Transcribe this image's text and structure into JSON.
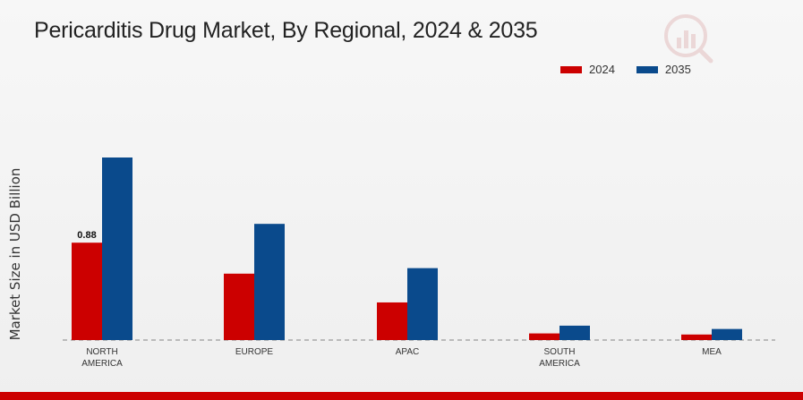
{
  "chart_data": {
    "type": "bar",
    "title": "Pericarditis Drug Market, By Regional, 2024 & 2035",
    "ylabel": "Market Size in USD Billion",
    "xlabel": "",
    "categories": [
      "NORTH AMERICA",
      "EUROPE",
      "APAC",
      "SOUTH AMERICA",
      "MEA"
    ],
    "series": [
      {
        "name": "2024",
        "color": "#cc0000",
        "values": [
          0.88,
          0.6,
          0.34,
          0.06,
          0.05
        ]
      },
      {
        "name": "2035",
        "color": "#0a4a8c",
        "values": [
          1.65,
          1.05,
          0.65,
          0.13,
          0.1
        ]
      }
    ],
    "data_labels": [
      {
        "series": 0,
        "index": 0,
        "text": "0.88"
      }
    ],
    "ylim": [
      0,
      2.2
    ],
    "legend_position": "top-right",
    "grid": false
  }
}
